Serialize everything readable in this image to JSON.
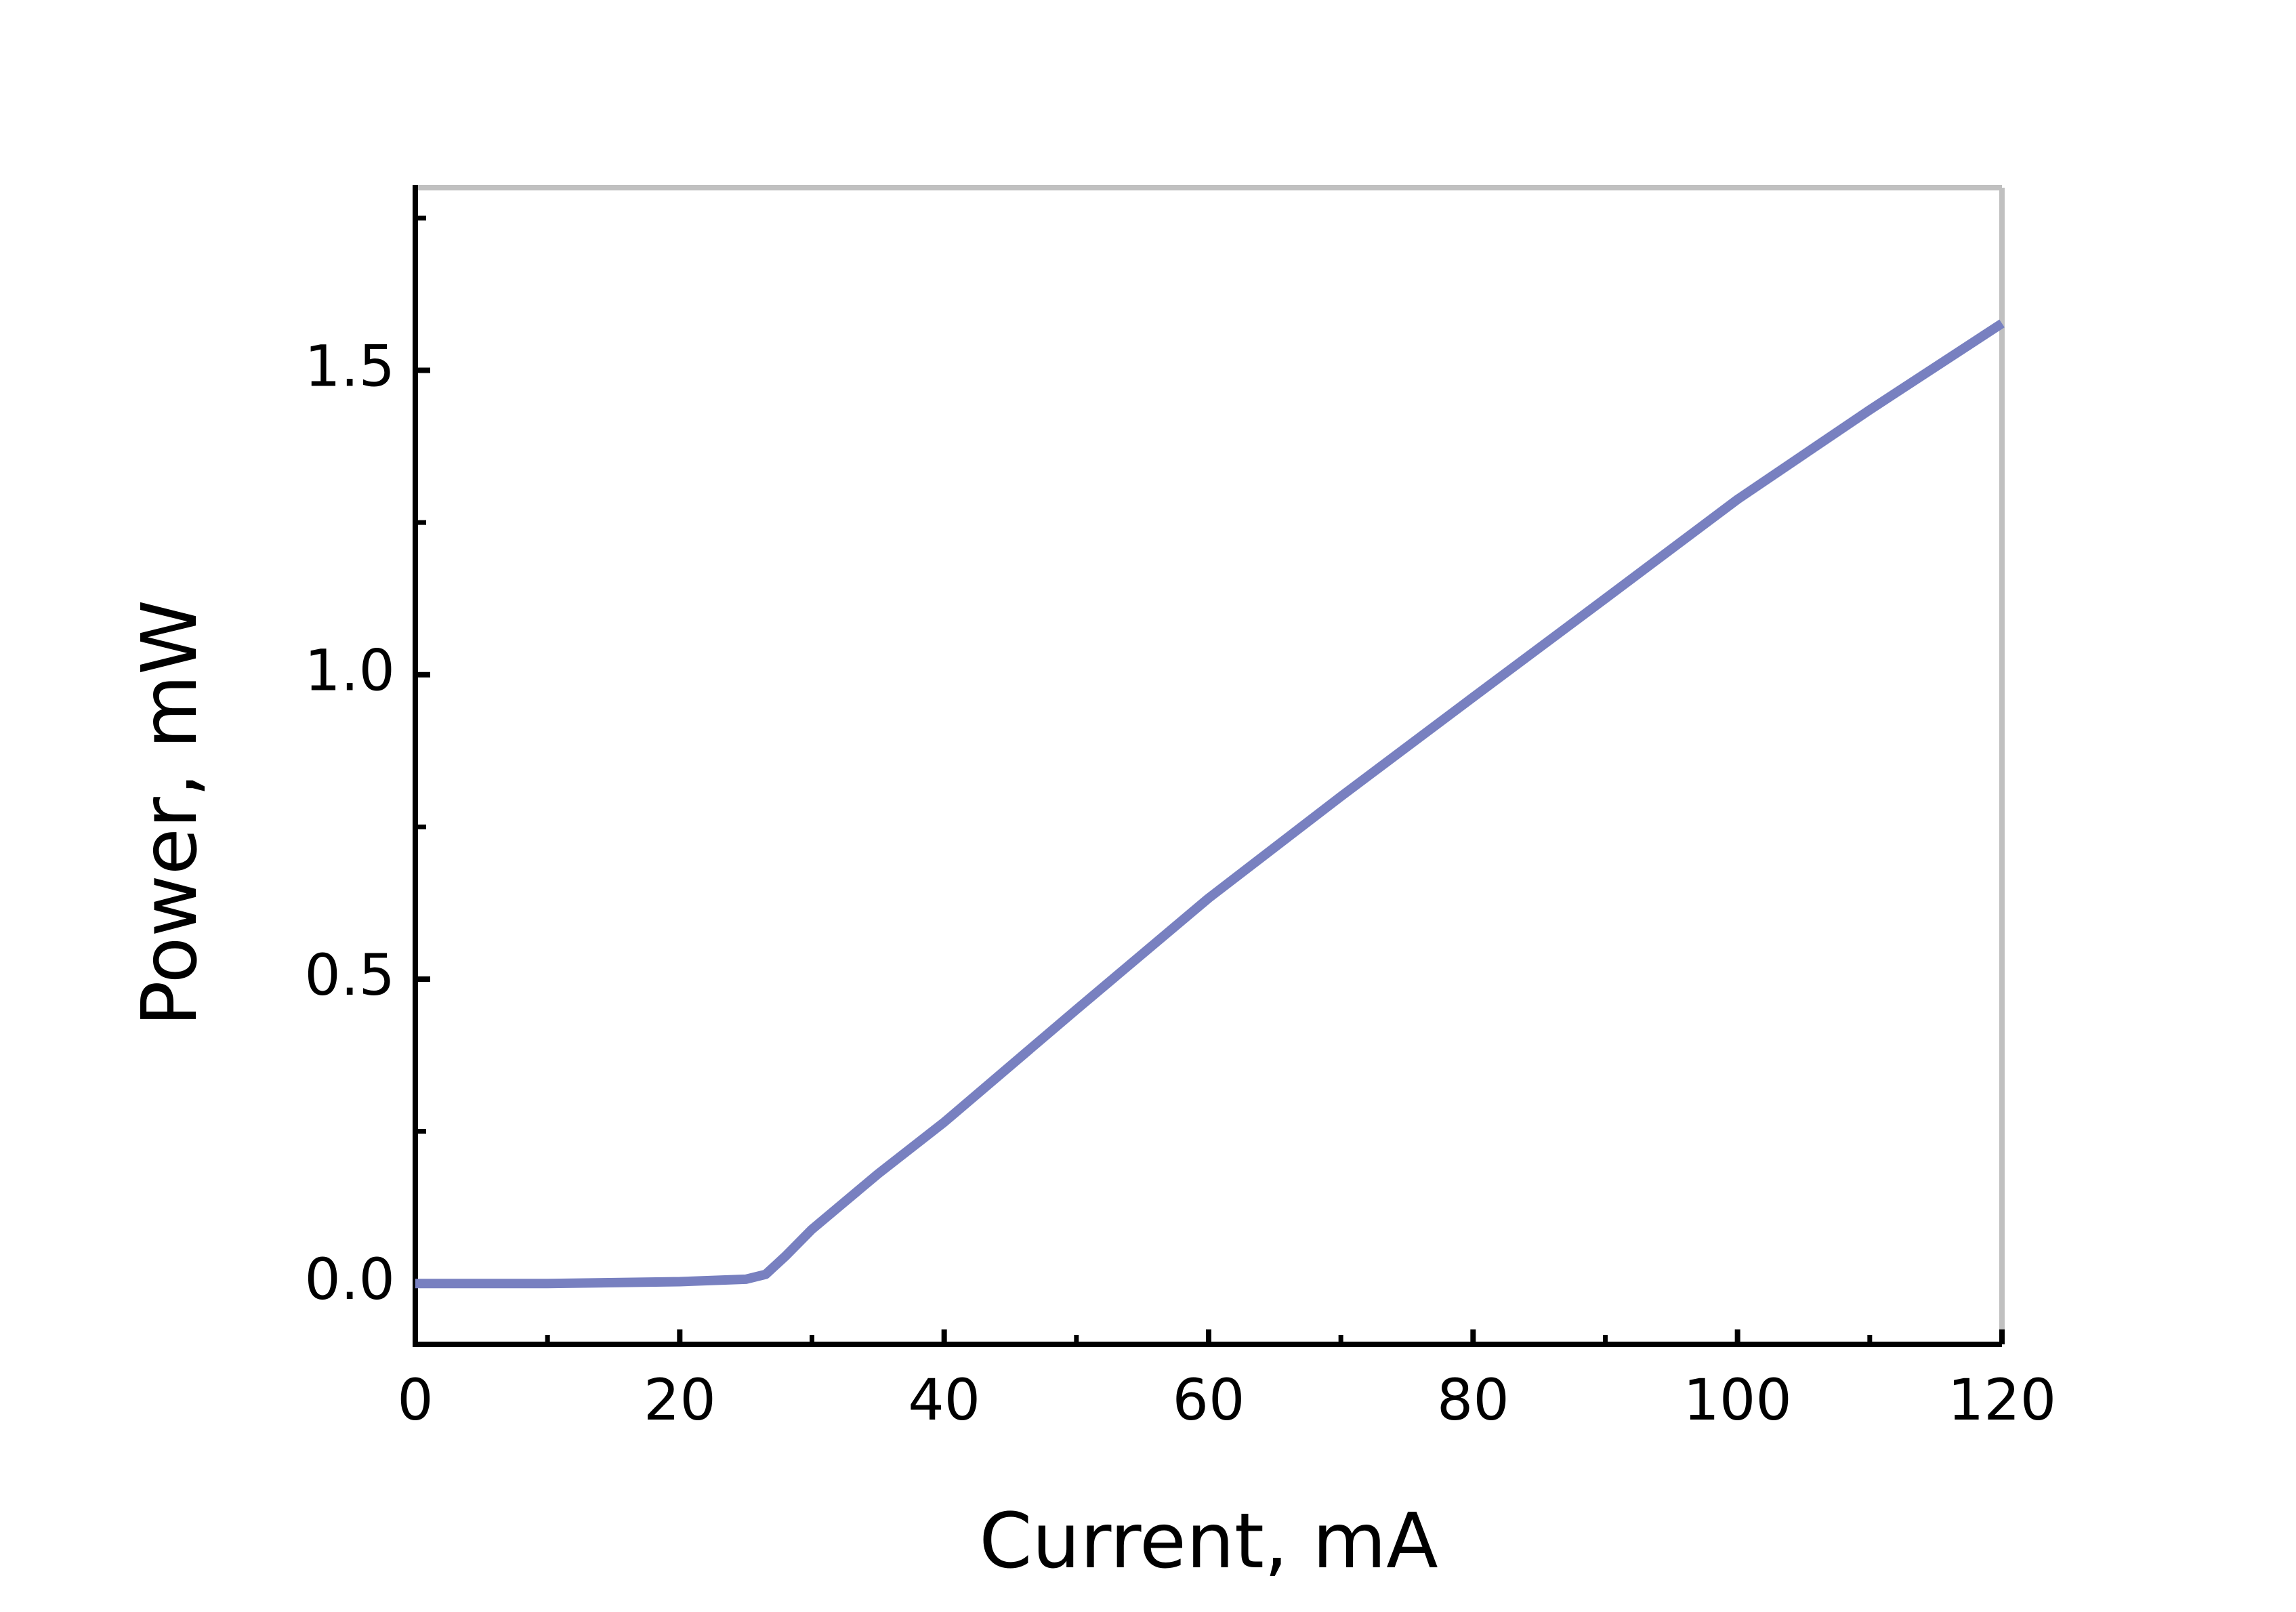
{
  "chart_data": {
    "type": "line",
    "xlabel": "Current, mA",
    "ylabel": "Power, mW",
    "x": [
      0,
      10,
      20,
      25,
      26.5,
      28,
      30,
      35,
      40,
      50,
      60,
      70,
      80,
      90,
      100,
      110,
      120
    ],
    "series": [
      {
        "name": null,
        "color": "#7880c0",
        "values": [
          0,
          0,
          0.003,
          0.007,
          0.015,
          0.045,
          0.089,
          0.18,
          0.265,
          0.45,
          0.633,
          0.8,
          0.963,
          1.125,
          1.288,
          1.435,
          1.577
        ]
      }
    ],
    "xlim": [
      0,
      120
    ],
    "xticks": [
      0,
      20,
      40,
      60,
      80,
      100,
      120
    ],
    "xminor_ticks": [
      10,
      30,
      50,
      70,
      90,
      110
    ],
    "ylim": [
      -0.1,
      1.8
    ],
    "yticks": [
      {
        "value": 0,
        "label": "0.0"
      },
      {
        "value": 0.5,
        "label": "0.5"
      },
      {
        "value": 1,
        "label": "1.0"
      },
      {
        "value": 1.5,
        "label": "1.5"
      }
    ],
    "yminor_ticks": [
      0.25,
      0.75,
      1.25,
      1.75
    ],
    "grid": false
  }
}
